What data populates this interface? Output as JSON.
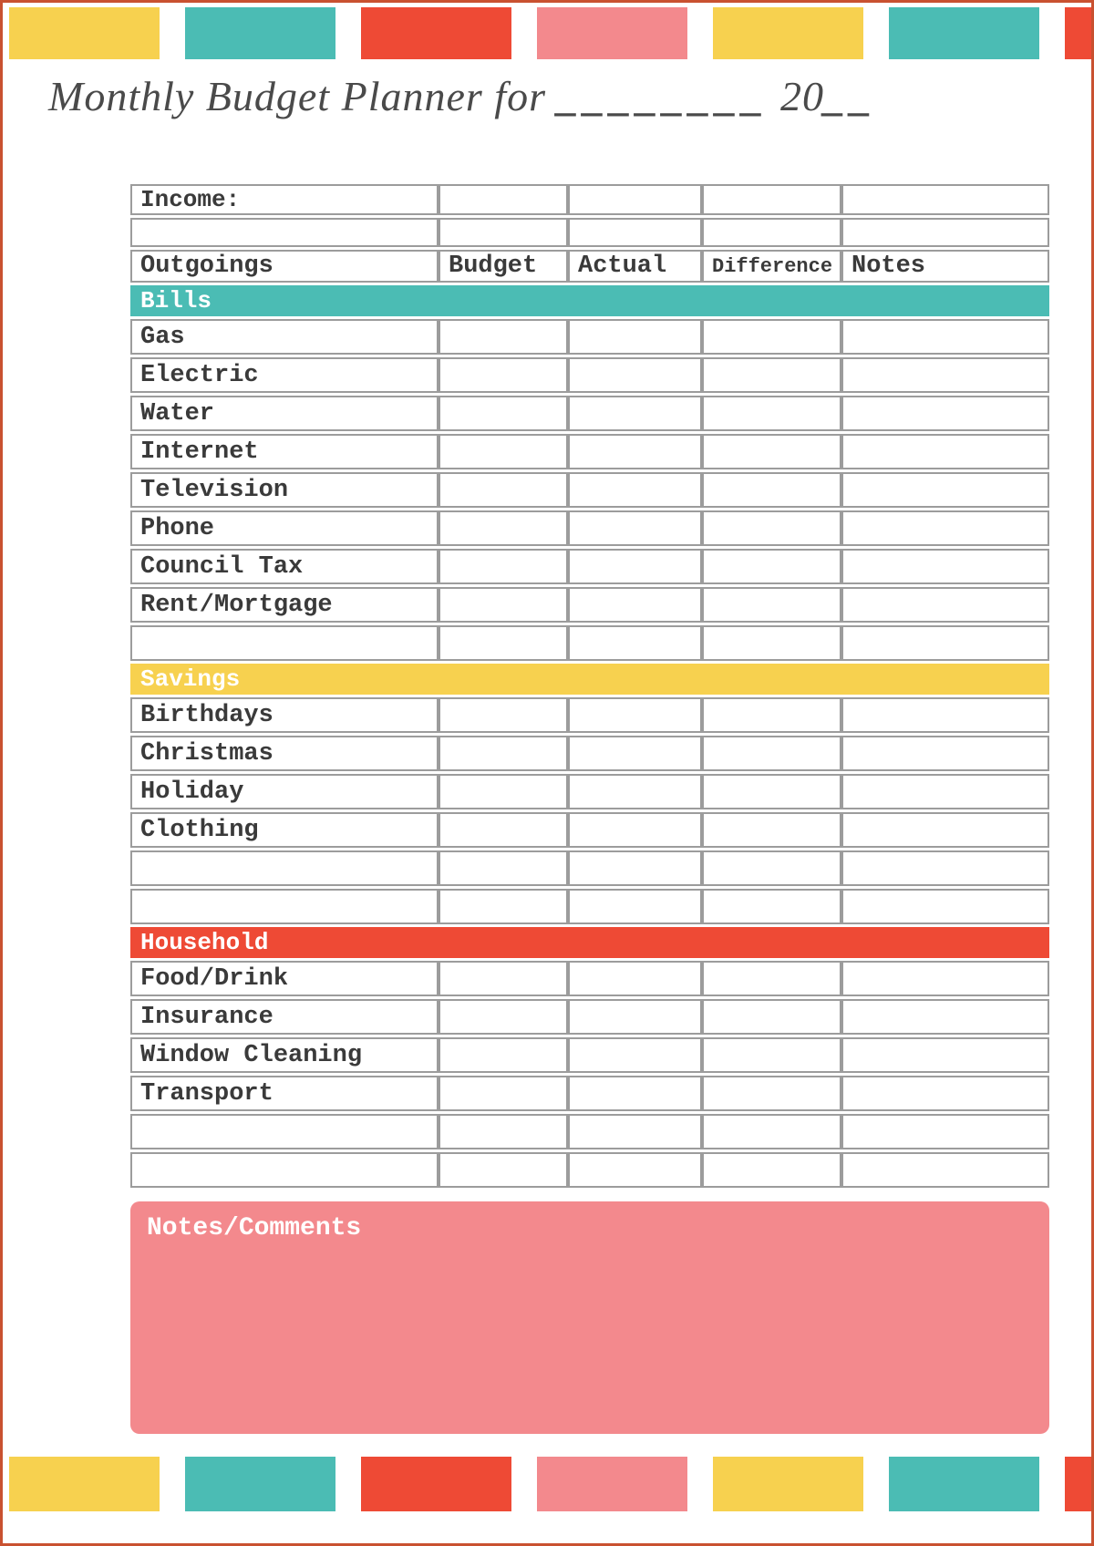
{
  "page": {
    "colors": {
      "page_border": "#c95130",
      "yellow": "#f7d14f",
      "teal": "#4bbcb4",
      "red": "#ee4a35",
      "pink": "#f3898d",
      "table_border": "#9c9c9c",
      "text": "#3a3a3a",
      "title_text": "#4a4a4a",
      "bar_text": "#ffffff"
    },
    "decor_squares": [
      "yellow",
      "teal",
      "red",
      "pink",
      "yellow",
      "teal",
      "red"
    ]
  },
  "title": {
    "text": "Monthly Budget Planner for",
    "blank": "________",
    "year": "20",
    "year_blank": "__"
  },
  "table": {
    "income_label": "Income:",
    "headers": [
      "Outgoings",
      "Budget",
      "Actual",
      "Difference",
      "Notes"
    ],
    "sections": [
      {
        "name": "Bills",
        "color": "#4bbcb4",
        "rows": [
          "Gas",
          "Electric",
          "Water",
          "Internet",
          "Television",
          "Phone",
          "Council Tax",
          "Rent/Mortgage",
          ""
        ]
      },
      {
        "name": "Savings",
        "color": "#f7d14f",
        "rows": [
          "Birthdays",
          "Christmas",
          "Holiday",
          "Clothing",
          "",
          ""
        ]
      },
      {
        "name": "Household",
        "color": "#ee4a35",
        "rows": [
          "Food/Drink",
          "Insurance",
          "Window Cleaning",
          "Transport",
          "",
          ""
        ]
      }
    ]
  },
  "notes_box": {
    "label": "Notes/Comments",
    "color": "#f3898d"
  }
}
